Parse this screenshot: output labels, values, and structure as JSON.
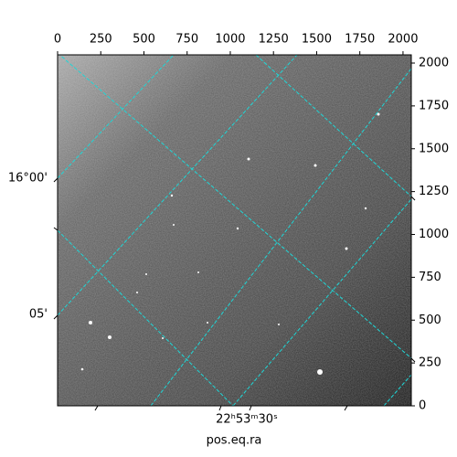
{
  "chart_data": {
    "type": "image",
    "xlabel": "pos.eq.ra",
    "xlim": [
      0,
      2048
    ],
    "ylim": [
      0,
      2048
    ],
    "xticks": [
      0,
      250,
      500,
      750,
      1000,
      1250,
      1500,
      1750,
      2000
    ],
    "yticks": [
      0,
      250,
      500,
      750,
      1000,
      1250,
      1500,
      1750,
      2000
    ],
    "wcs_y_labels": [
      "16°00'",
      "05'"
    ],
    "wcs_x_labels": [
      "22ʰ53ᵐ30ˢ"
    ]
  }
}
